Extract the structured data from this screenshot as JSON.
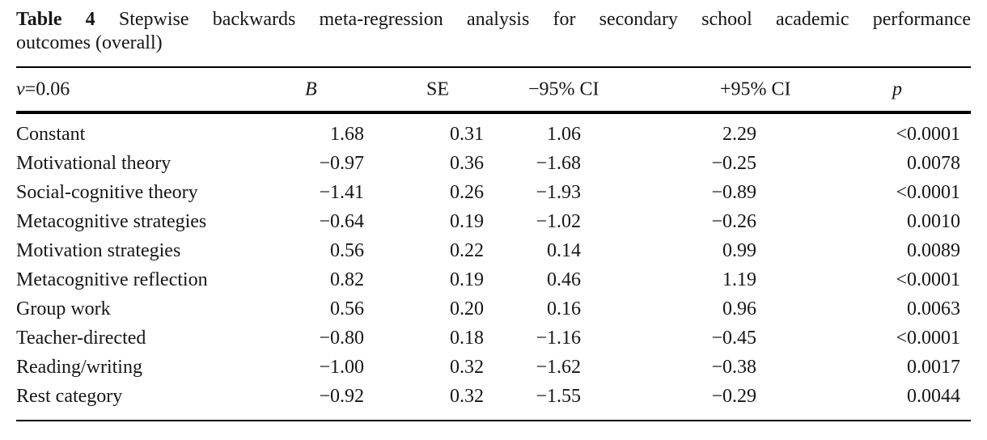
{
  "page": {
    "background": "#ffffff",
    "text_color": "#161616",
    "rule_color": "#000000"
  },
  "title": {
    "label": "Table 4",
    "line1_rest": "Stepwise backwards meta-regression analysis for secondary school academic performance",
    "line2": "outcomes (overall)"
  },
  "table": {
    "param_symbol": "v",
    "param_value": "=0.06",
    "headers": {
      "b": "B",
      "se": "SE",
      "ci_low": "−95% CI",
      "ci_high": "+95% CI",
      "p": "p"
    },
    "rows": [
      {
        "label": "Constant",
        "b": "1.68",
        "se": "0.31",
        "ci_low": "1.06",
        "ci_high": "2.29",
        "p": "<0.0001"
      },
      {
        "label": "Motivational theory",
        "b": "−0.97",
        "se": "0.36",
        "ci_low": "−1.68",
        "ci_high": "−0.25",
        "p": "0.0078"
      },
      {
        "label": "Social-cognitive theory",
        "b": "−1.41",
        "se": "0.26",
        "ci_low": "−1.93",
        "ci_high": "−0.89",
        "p": "<0.0001"
      },
      {
        "label": "Metacognitive strategies",
        "b": "−0.64",
        "se": "0.19",
        "ci_low": "−1.02",
        "ci_high": "−0.26",
        "p": "0.0010"
      },
      {
        "label": "Motivation strategies",
        "b": "0.56",
        "se": "0.22",
        "ci_low": "0.14",
        "ci_high": "0.99",
        "p": "0.0089"
      },
      {
        "label": "Metacognitive reflection",
        "b": "0.82",
        "se": "0.19",
        "ci_low": "0.46",
        "ci_high": "1.19",
        "p": "<0.0001"
      },
      {
        "label": "Group work",
        "b": "0.56",
        "se": "0.20",
        "ci_low": "0.16",
        "ci_high": "0.96",
        "p": "0.0063"
      },
      {
        "label": "Teacher-directed",
        "b": "−0.80",
        "se": "0.18",
        "ci_low": "−1.16",
        "ci_high": "−0.45",
        "p": "<0.0001"
      },
      {
        "label": "Reading/writing",
        "b": "−1.00",
        "se": "0.32",
        "ci_low": "−1.62",
        "ci_high": "−0.38",
        "p": "0.0017"
      },
      {
        "label": "Rest category",
        "b": "−0.92",
        "se": "0.32",
        "ci_low": "−1.55",
        "ci_high": "−0.29",
        "p": "0.0044"
      }
    ]
  }
}
